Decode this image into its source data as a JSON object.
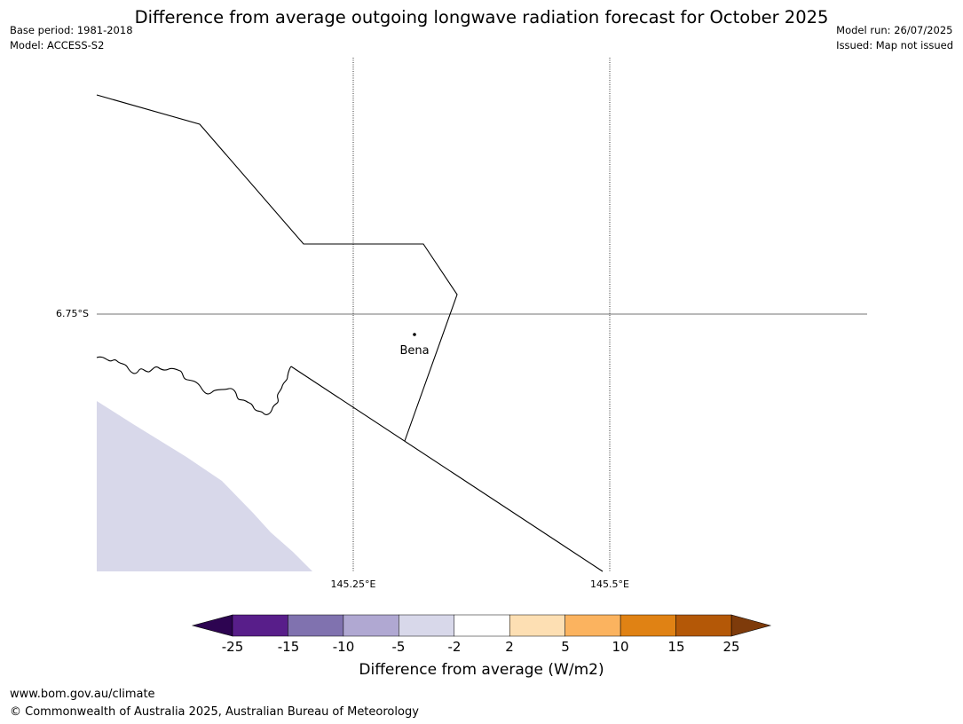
{
  "title": "Difference from average outgoing longwave radiation forecast for October 2025",
  "header_left": [
    "Base period: 1981-2018",
    "Model: ACCESS-S2"
  ],
  "header_right": [
    "Model run: 26/07/2025",
    "Issued: Map not issued"
  ],
  "map": {
    "lat_label": "6.75°S",
    "lon_labels": [
      "145.25°E",
      "145.5°E"
    ],
    "place": {
      "name": "Bena"
    },
    "shading_color": "#d8d8ea"
  },
  "colorbar": {
    "title": "Difference from average (W/m2)",
    "ticks": [
      "-25",
      "-15",
      "-10",
      "-5",
      "-2",
      "2",
      "5",
      "10",
      "15",
      "25"
    ],
    "colors": [
      "#581e8a",
      "#8072af",
      "#b0a8d2",
      "#d8d8ea",
      "#ffffff",
      "#fddfb3",
      "#fbb35f",
      "#e08214",
      "#b45807"
    ],
    "extend_low_color": "#2d0451",
    "extend_high_color": "#7e3b0b"
  },
  "footer": [
    "www.bom.gov.au/climate",
    "© Commonwealth of Australia 2025, Australian Bureau of Meteorology"
  ]
}
